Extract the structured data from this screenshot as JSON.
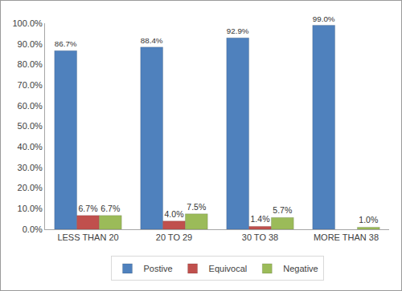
{
  "chart_data": {
    "type": "bar",
    "categories": [
      "LESS THAN 20",
      "20 TO 29",
      "30 TO 38",
      "MORE THAN 38"
    ],
    "series": [
      {
        "name": "Postive",
        "color": "#4f81bd",
        "values": [
          86.7,
          88.4,
          92.9,
          99.0
        ],
        "value_labels": [
          "86.7%",
          "88.4%",
          "92.9%",
          "99.0%"
        ]
      },
      {
        "name": "Equivocal",
        "color": "#c0504d",
        "values": [
          6.7,
          4.0,
          1.4,
          null
        ],
        "value_labels": [
          "6.7%",
          "4.0%",
          "1.4%",
          null
        ]
      },
      {
        "name": "Negative",
        "color": "#9bbb59",
        "values": [
          6.7,
          7.5,
          5.7,
          1.0
        ],
        "value_labels": [
          "6.7%",
          "7.5%",
          "5.7%",
          "1.0%"
        ]
      }
    ],
    "ylim": [
      0,
      100
    ],
    "yticks": [
      {
        "value": 0,
        "label": "0.0%"
      },
      {
        "value": 10,
        "label": "10.0%"
      },
      {
        "value": 20,
        "label": "20.0%"
      },
      {
        "value": 30,
        "label": "30.0%"
      },
      {
        "value": 40,
        "label": "40.0%"
      },
      {
        "value": 50,
        "label": "50.0%"
      },
      {
        "value": 60,
        "label": "60.0%"
      },
      {
        "value": 70,
        "label": "70.0%"
      },
      {
        "value": 80,
        "label": "80.0%"
      },
      {
        "value": 90,
        "label": "90.0%"
      },
      {
        "value": 100,
        "label": "100.0%"
      }
    ],
    "grid": false,
    "legend": "bottom",
    "data_labels": true
  }
}
